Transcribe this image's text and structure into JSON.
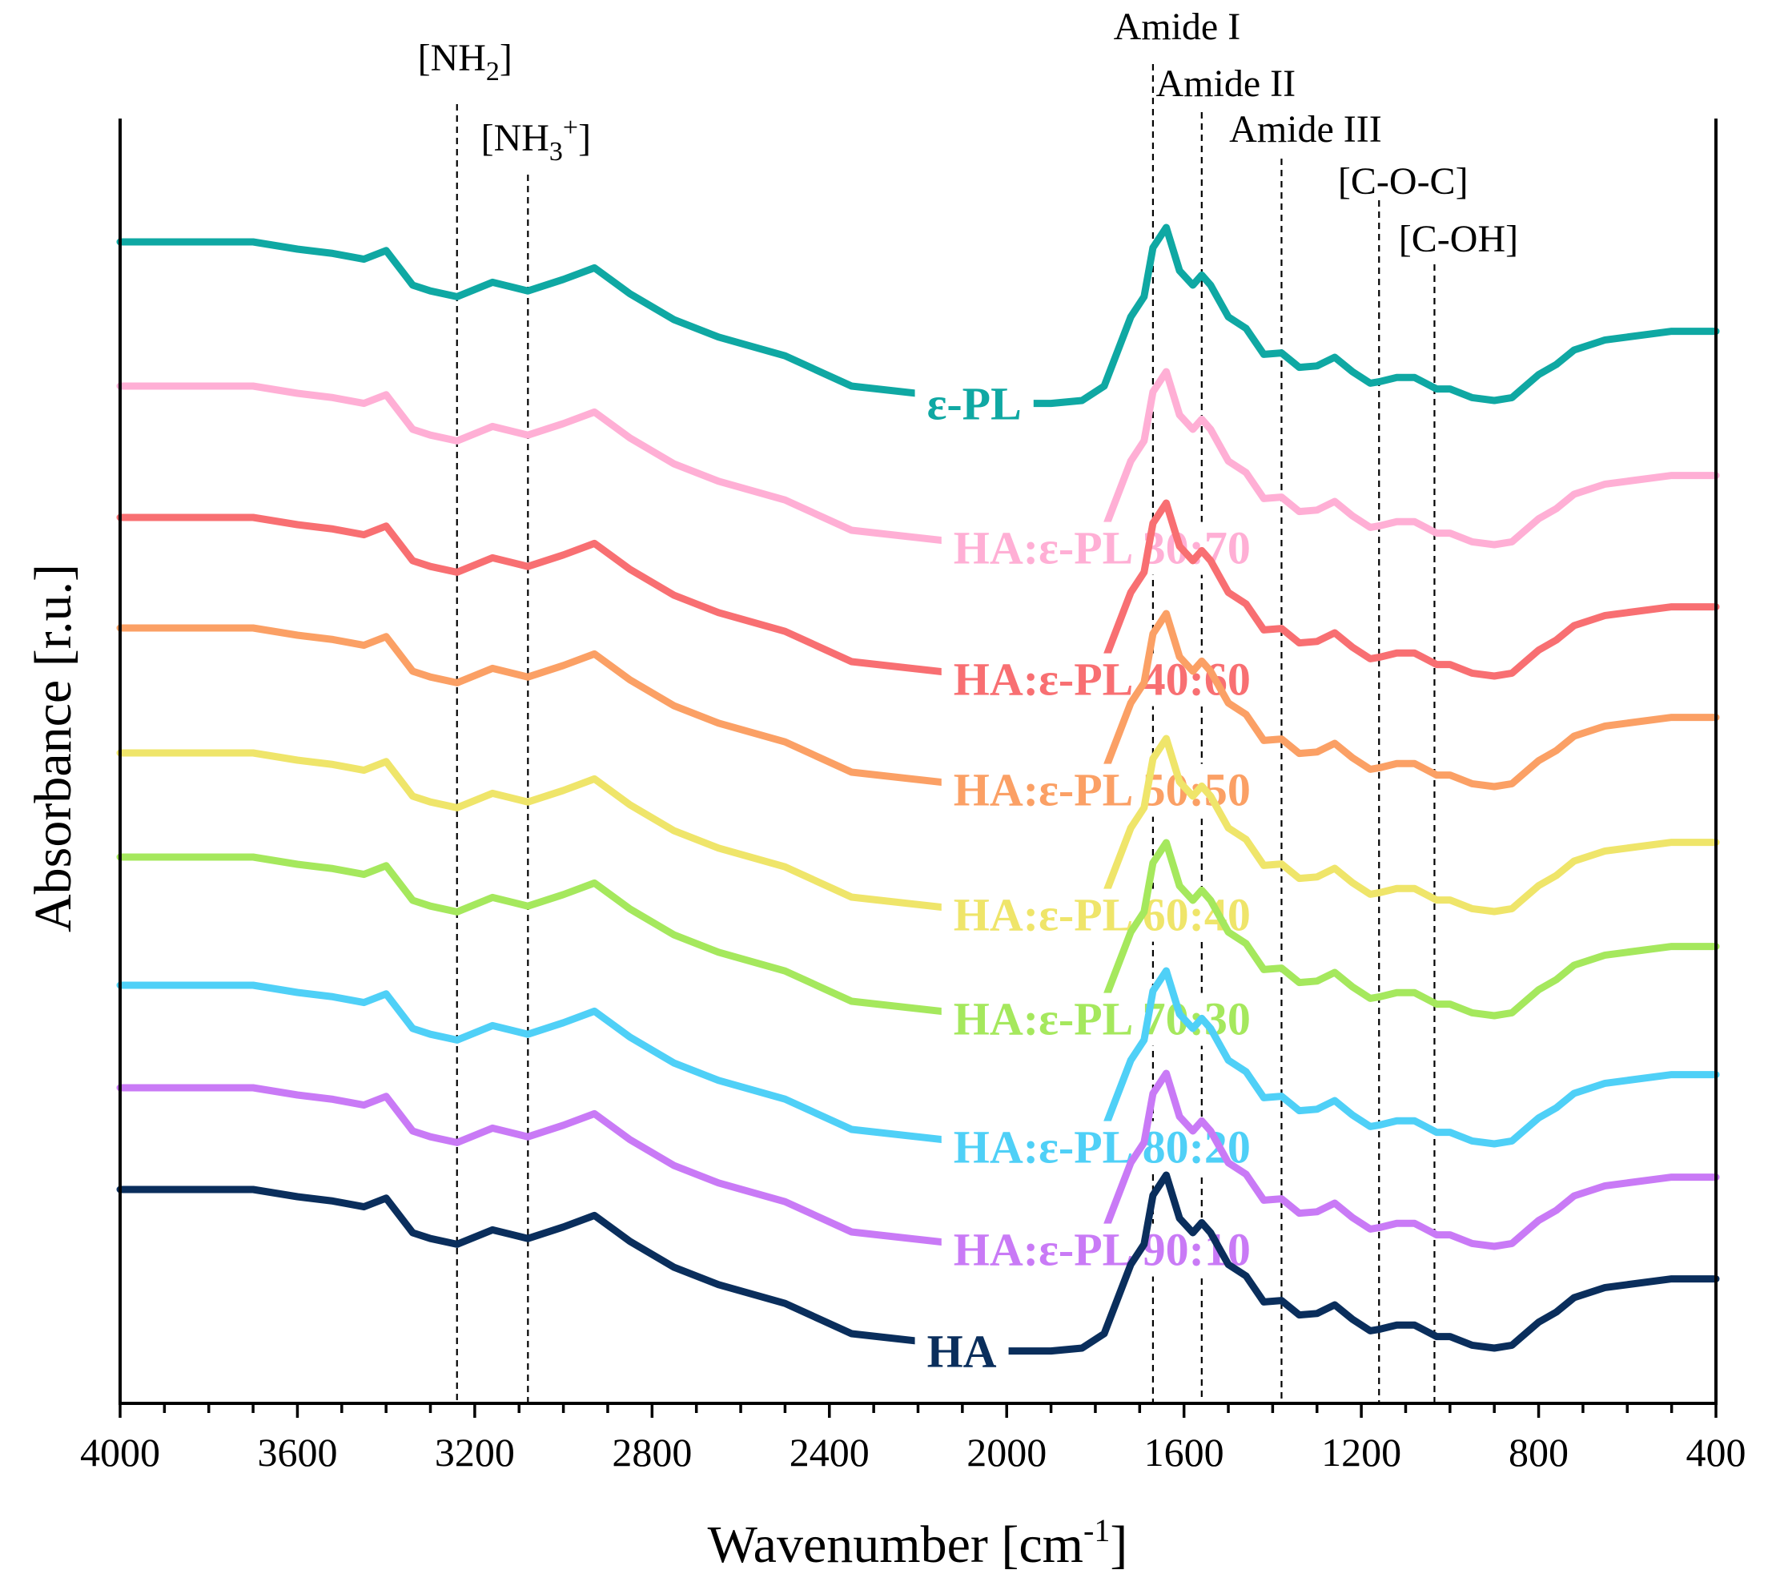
{
  "chart_data": {
    "type": "line",
    "xlabel": "Wavenumber [cm",
    "xlabel_sup": "-1",
    "xlabel_end": "]",
    "ylabel": "Absorbance [r.u.]",
    "xlim": [
      4000,
      400
    ],
    "x_reversed": true,
    "x_ticks": [
      "4000",
      "3600",
      "3200",
      "2800",
      "2400",
      "2000",
      "1600",
      "1200",
      "800",
      "400"
    ],
    "grid": false,
    "legend": "inline labels on each curve",
    "reference_lines": [
      {
        "label": "[NH",
        "sub": "2",
        "sup": "",
        "close": "]",
        "x": 3240
      },
      {
        "label": "[NH",
        "sub": "3",
        "sup": "+",
        "close": "]",
        "x": 3080
      },
      {
        "label": "Amide I",
        "sub": "",
        "sup": "",
        "close": "",
        "x": 1670
      },
      {
        "label": "Amide II",
        "sub": "",
        "sup": "",
        "close": "",
        "x": 1560
      },
      {
        "label": "Amide III",
        "sub": "",
        "sup": "",
        "close": "",
        "x": 1380
      },
      {
        "label": "[C-O-C]",
        "sub": "",
        "sup": "",
        "close": "",
        "x": 1160
      },
      {
        "label": "[C-OH]",
        "sub": "",
        "sup": "",
        "close": "",
        "x": 1035
      }
    ],
    "series": [
      {
        "name": "ε-PL",
        "color": "#0FA8A3",
        "label_x": 2180,
        "x": [
          4000,
          3700,
          3600,
          3520,
          3450,
          3400,
          3340,
          3300,
          3240,
          3160,
          3080,
          3000,
          2930,
          2850,
          2750,
          2650,
          2500,
          2350,
          2000,
          1900,
          1830,
          1780,
          1720,
          1690,
          1670,
          1640,
          1610,
          1580,
          1560,
          1540,
          1500,
          1460,
          1420,
          1380,
          1340,
          1300,
          1260,
          1220,
          1180,
          1160,
          1120,
          1080,
          1030,
          1000,
          950,
          900,
          860,
          800,
          760,
          720,
          650,
          600,
          500,
          400
        ],
        "y": [
          0.5,
          0.5,
          0.45,
          0.42,
          0.38,
          0.44,
          0.2,
          0.16,
          0.12,
          0.22,
          0.16,
          0.24,
          0.32,
          0.14,
          -0.04,
          -0.16,
          -0.29,
          -0.5,
          -0.62,
          -0.62,
          -0.6,
          -0.5,
          -0.02,
          0.12,
          0.46,
          0.6,
          0.3,
          0.2,
          0.27,
          0.2,
          -0.02,
          -0.1,
          -0.28,
          -0.27,
          -0.37,
          -0.36,
          -0.3,
          -0.4,
          -0.48,
          -0.47,
          -0.44,
          -0.44,
          -0.52,
          -0.52,
          -0.58,
          -0.6,
          -0.58,
          -0.42,
          -0.35,
          -0.25,
          -0.18,
          -0.16,
          -0.12,
          -0.12
        ]
      },
      {
        "name": "HA:ε-PL 30:70",
        "color": "#FFAFD5",
        "label_x": 2120,
        "x": [
          4000,
          3700,
          3600,
          3520,
          3450,
          3400,
          3340,
          3300,
          3240,
          3160,
          3080,
          3000,
          2930,
          2850,
          2750,
          2650,
          2500,
          2350,
          2000,
          1900,
          1830,
          1780,
          1720,
          1690,
          1670,
          1640,
          1610,
          1580,
          1560,
          1540,
          1500,
          1460,
          1420,
          1380,
          1340,
          1300,
          1260,
          1220,
          1180,
          1160,
          1120,
          1080,
          1030,
          1000,
          950,
          900,
          860,
          800,
          760,
          720,
          650,
          600,
          500,
          400
        ],
        "y": [
          0.5,
          0.5,
          0.45,
          0.42,
          0.38,
          0.44,
          0.2,
          0.16,
          0.12,
          0.22,
          0.16,
          0.24,
          0.32,
          0.14,
          -0.04,
          -0.16,
          -0.29,
          -0.5,
          -0.62,
          -0.62,
          -0.6,
          -0.5,
          -0.02,
          0.12,
          0.46,
          0.6,
          0.3,
          0.2,
          0.27,
          0.2,
          -0.02,
          -0.1,
          -0.28,
          -0.27,
          -0.37,
          -0.36,
          -0.3,
          -0.4,
          -0.48,
          -0.47,
          -0.44,
          -0.44,
          -0.52,
          -0.52,
          -0.58,
          -0.6,
          -0.58,
          -0.42,
          -0.35,
          -0.25,
          -0.18,
          -0.16,
          -0.12,
          -0.12
        ]
      },
      {
        "name": "HA:ε-PL 40:60",
        "color": "#F86F72",
        "label_x": 2120,
        "x": [
          4000,
          3700,
          3600,
          3520,
          3450,
          3400,
          3340,
          3300,
          3240,
          3160,
          3080,
          3000,
          2930,
          2850,
          2750,
          2650,
          2500,
          2350,
          2000,
          1900,
          1830,
          1780,
          1720,
          1690,
          1670,
          1640,
          1610,
          1580,
          1560,
          1540,
          1500,
          1460,
          1420,
          1380,
          1340,
          1300,
          1260,
          1220,
          1180,
          1160,
          1120,
          1080,
          1030,
          1000,
          950,
          900,
          860,
          800,
          760,
          720,
          650,
          600,
          500,
          400
        ],
        "y": [
          0.5,
          0.5,
          0.45,
          0.42,
          0.38,
          0.44,
          0.2,
          0.16,
          0.12,
          0.22,
          0.16,
          0.24,
          0.32,
          0.14,
          -0.04,
          -0.16,
          -0.29,
          -0.5,
          -0.62,
          -0.62,
          -0.6,
          -0.5,
          -0.02,
          0.12,
          0.46,
          0.6,
          0.3,
          0.2,
          0.27,
          0.2,
          -0.02,
          -0.1,
          -0.28,
          -0.27,
          -0.37,
          -0.36,
          -0.3,
          -0.4,
          -0.48,
          -0.47,
          -0.44,
          -0.44,
          -0.52,
          -0.52,
          -0.58,
          -0.6,
          -0.58,
          -0.42,
          -0.35,
          -0.25,
          -0.18,
          -0.16,
          -0.12,
          -0.12
        ]
      },
      {
        "name": "HA:ε-PL 50:50",
        "color": "#FBA065",
        "label_x": 2120,
        "x": [
          4000,
          3700,
          3600,
          3520,
          3450,
          3400,
          3340,
          3300,
          3240,
          3160,
          3080,
          3000,
          2930,
          2850,
          2750,
          2650,
          2500,
          2350,
          2000,
          1900,
          1830,
          1780,
          1720,
          1690,
          1670,
          1640,
          1610,
          1580,
          1560,
          1540,
          1500,
          1460,
          1420,
          1380,
          1340,
          1300,
          1260,
          1220,
          1180,
          1160,
          1120,
          1080,
          1030,
          1000,
          950,
          900,
          860,
          800,
          760,
          720,
          650,
          600,
          500,
          400
        ],
        "y": [
          0.5,
          0.5,
          0.45,
          0.42,
          0.38,
          0.44,
          0.2,
          0.16,
          0.12,
          0.22,
          0.16,
          0.24,
          0.32,
          0.14,
          -0.04,
          -0.16,
          -0.29,
          -0.5,
          -0.62,
          -0.62,
          -0.6,
          -0.5,
          -0.02,
          0.12,
          0.46,
          0.6,
          0.3,
          0.2,
          0.27,
          0.2,
          -0.02,
          -0.1,
          -0.28,
          -0.27,
          -0.37,
          -0.36,
          -0.3,
          -0.4,
          -0.48,
          -0.47,
          -0.44,
          -0.44,
          -0.52,
          -0.52,
          -0.58,
          -0.6,
          -0.58,
          -0.42,
          -0.35,
          -0.25,
          -0.18,
          -0.16,
          -0.12,
          -0.12
        ]
      },
      {
        "name": "HA:ε-PL 60:40",
        "color": "#EFE56A",
        "label_x": 2120,
        "x": [
          4000,
          3700,
          3600,
          3520,
          3450,
          3400,
          3340,
          3300,
          3240,
          3160,
          3080,
          3000,
          2930,
          2850,
          2750,
          2650,
          2500,
          2350,
          2000,
          1900,
          1830,
          1780,
          1720,
          1690,
          1670,
          1640,
          1610,
          1580,
          1560,
          1540,
          1500,
          1460,
          1420,
          1380,
          1340,
          1300,
          1260,
          1220,
          1180,
          1160,
          1120,
          1080,
          1030,
          1000,
          950,
          900,
          860,
          800,
          760,
          720,
          650,
          600,
          500,
          400
        ],
        "y": [
          0.5,
          0.5,
          0.45,
          0.42,
          0.38,
          0.44,
          0.2,
          0.16,
          0.12,
          0.22,
          0.16,
          0.24,
          0.32,
          0.14,
          -0.04,
          -0.16,
          -0.29,
          -0.5,
          -0.62,
          -0.62,
          -0.6,
          -0.5,
          -0.02,
          0.12,
          0.46,
          0.6,
          0.3,
          0.2,
          0.27,
          0.2,
          -0.02,
          -0.1,
          -0.28,
          -0.27,
          -0.37,
          -0.36,
          -0.3,
          -0.4,
          -0.48,
          -0.47,
          -0.44,
          -0.44,
          -0.52,
          -0.52,
          -0.58,
          -0.6,
          -0.58,
          -0.42,
          -0.35,
          -0.25,
          -0.18,
          -0.16,
          -0.12,
          -0.12
        ]
      },
      {
        "name": "HA:ε-PL 70:30",
        "color": "#A5E85D",
        "label_x": 2120,
        "x": [
          4000,
          3700,
          3600,
          3520,
          3450,
          3400,
          3340,
          3300,
          3240,
          3160,
          3080,
          3000,
          2930,
          2850,
          2750,
          2650,
          2500,
          2350,
          2000,
          1900,
          1830,
          1780,
          1720,
          1690,
          1670,
          1640,
          1610,
          1580,
          1560,
          1540,
          1500,
          1460,
          1420,
          1380,
          1340,
          1300,
          1260,
          1220,
          1180,
          1160,
          1120,
          1080,
          1030,
          1000,
          950,
          900,
          860,
          800,
          760,
          720,
          650,
          600,
          500,
          400
        ],
        "y": [
          0.5,
          0.5,
          0.45,
          0.42,
          0.38,
          0.44,
          0.2,
          0.16,
          0.12,
          0.22,
          0.16,
          0.24,
          0.32,
          0.14,
          -0.04,
          -0.16,
          -0.29,
          -0.5,
          -0.62,
          -0.62,
          -0.6,
          -0.5,
          -0.02,
          0.12,
          0.46,
          0.6,
          0.3,
          0.2,
          0.27,
          0.2,
          -0.02,
          -0.1,
          -0.28,
          -0.27,
          -0.37,
          -0.36,
          -0.3,
          -0.4,
          -0.48,
          -0.47,
          -0.44,
          -0.44,
          -0.52,
          -0.52,
          -0.58,
          -0.6,
          -0.58,
          -0.42,
          -0.35,
          -0.25,
          -0.18,
          -0.16,
          -0.12,
          -0.12
        ]
      },
      {
        "name": "HA:ε-PL 80:20",
        "color": "#4FD0F7",
        "label_x": 2120,
        "x": [
          4000,
          3700,
          3600,
          3520,
          3450,
          3400,
          3340,
          3300,
          3240,
          3160,
          3080,
          3000,
          2930,
          2850,
          2750,
          2650,
          2500,
          2350,
          2000,
          1900,
          1830,
          1780,
          1720,
          1690,
          1670,
          1640,
          1610,
          1580,
          1560,
          1540,
          1500,
          1460,
          1420,
          1380,
          1340,
          1300,
          1260,
          1220,
          1180,
          1160,
          1120,
          1080,
          1030,
          1000,
          950,
          900,
          860,
          800,
          760,
          720,
          650,
          600,
          500,
          400
        ],
        "y": [
          0.5,
          0.5,
          0.45,
          0.42,
          0.38,
          0.44,
          0.2,
          0.16,
          0.12,
          0.22,
          0.16,
          0.24,
          0.32,
          0.14,
          -0.04,
          -0.16,
          -0.29,
          -0.5,
          -0.62,
          -0.62,
          -0.6,
          -0.5,
          -0.02,
          0.12,
          0.46,
          0.6,
          0.3,
          0.2,
          0.27,
          0.2,
          -0.02,
          -0.1,
          -0.28,
          -0.27,
          -0.37,
          -0.36,
          -0.3,
          -0.4,
          -0.48,
          -0.47,
          -0.44,
          -0.44,
          -0.52,
          -0.52,
          -0.58,
          -0.6,
          -0.58,
          -0.42,
          -0.35,
          -0.25,
          -0.18,
          -0.16,
          -0.12,
          -0.12
        ]
      },
      {
        "name": "HA:ε-PL 90:10",
        "color": "#C97AF6",
        "label_x": 2120,
        "x": [
          4000,
          3700,
          3600,
          3520,
          3450,
          3400,
          3340,
          3300,
          3240,
          3160,
          3080,
          3000,
          2930,
          2850,
          2750,
          2650,
          2500,
          2350,
          2000,
          1900,
          1830,
          1780,
          1720,
          1690,
          1670,
          1640,
          1610,
          1580,
          1560,
          1540,
          1500,
          1460,
          1420,
          1380,
          1340,
          1300,
          1260,
          1220,
          1180,
          1160,
          1120,
          1080,
          1030,
          1000,
          950,
          900,
          860,
          800,
          760,
          720,
          650,
          600,
          500,
          400
        ],
        "y": [
          0.5,
          0.5,
          0.45,
          0.42,
          0.38,
          0.44,
          0.2,
          0.16,
          0.12,
          0.22,
          0.16,
          0.24,
          0.32,
          0.14,
          -0.04,
          -0.16,
          -0.29,
          -0.5,
          -0.62,
          -0.62,
          -0.6,
          -0.5,
          -0.02,
          0.12,
          0.46,
          0.6,
          0.3,
          0.2,
          0.27,
          0.2,
          -0.02,
          -0.1,
          -0.28,
          -0.27,
          -0.37,
          -0.36,
          -0.3,
          -0.4,
          -0.48,
          -0.47,
          -0.44,
          -0.44,
          -0.52,
          -0.52,
          -0.58,
          -0.6,
          -0.58,
          -0.42,
          -0.35,
          -0.25,
          -0.18,
          -0.16,
          -0.12,
          -0.12
        ]
      },
      {
        "name": "HA",
        "color": "#0A2E5C",
        "label_x": 2180,
        "x": [
          4000,
          3700,
          3600,
          3520,
          3450,
          3400,
          3340,
          3300,
          3240,
          3160,
          3080,
          3000,
          2930,
          2850,
          2750,
          2650,
          2500,
          2350,
          2000,
          1900,
          1830,
          1780,
          1720,
          1690,
          1670,
          1640,
          1610,
          1580,
          1560,
          1540,
          1500,
          1460,
          1420,
          1380,
          1340,
          1300,
          1260,
          1220,
          1180,
          1160,
          1120,
          1080,
          1030,
          1000,
          950,
          900,
          860,
          800,
          760,
          720,
          650,
          600,
          500,
          400
        ],
        "y": [
          0.5,
          0.5,
          0.45,
          0.42,
          0.38,
          0.44,
          0.2,
          0.16,
          0.12,
          0.22,
          0.16,
          0.24,
          0.32,
          0.14,
          -0.04,
          -0.16,
          -0.29,
          -0.5,
          -0.62,
          -0.62,
          -0.6,
          -0.5,
          -0.02,
          0.12,
          0.46,
          0.6,
          0.3,
          0.2,
          0.27,
          0.2,
          -0.02,
          -0.1,
          -0.28,
          -0.27,
          -0.37,
          -0.36,
          -0.3,
          -0.4,
          -0.48,
          -0.47,
          -0.44,
          -0.44,
          -0.52,
          -0.52,
          -0.58,
          -0.6,
          -0.58,
          -0.42,
          -0.35,
          -0.25,
          -0.18,
          -0.16,
          -0.12,
          -0.12
        ]
      }
    ]
  }
}
